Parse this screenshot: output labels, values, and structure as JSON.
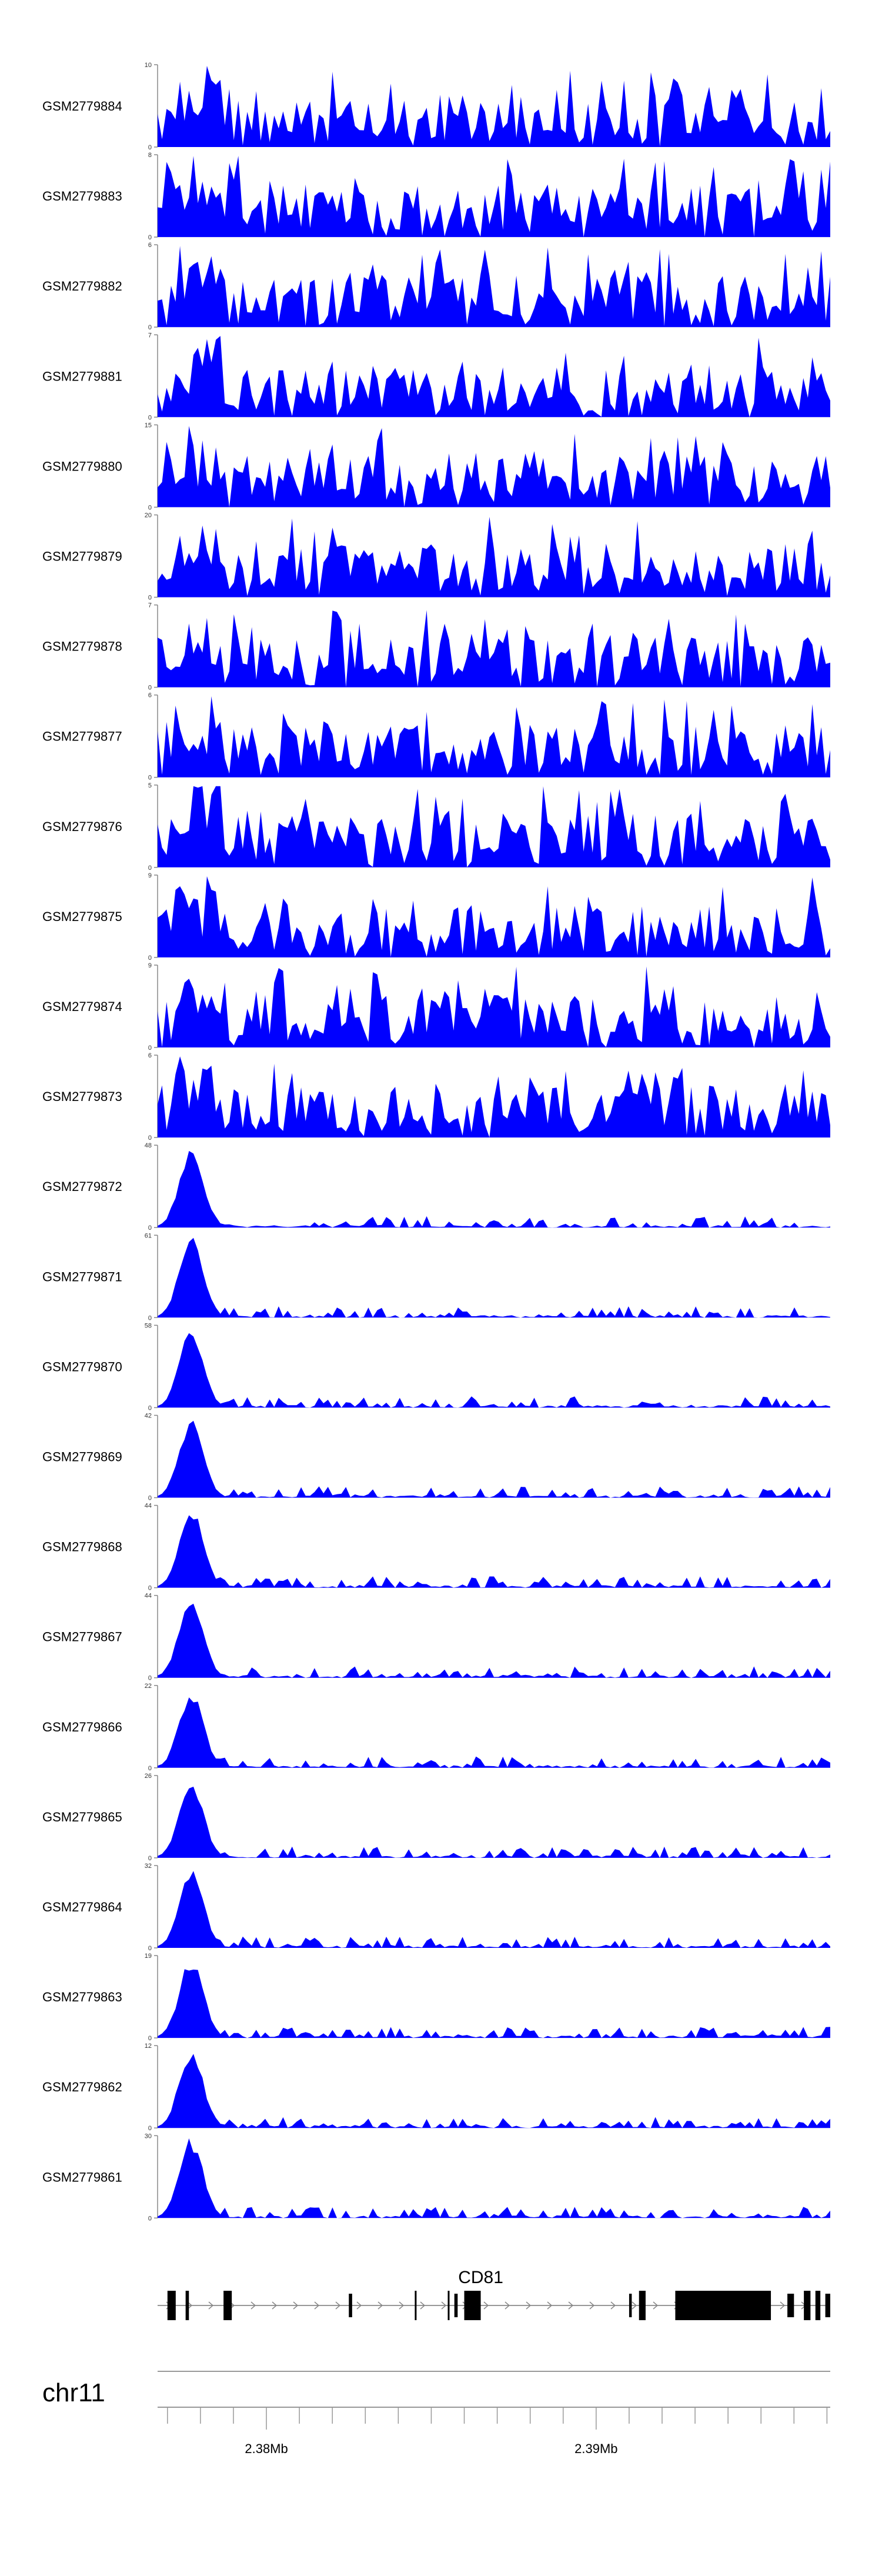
{
  "chart_data": {
    "type": "area",
    "fill_color": "#0000ff",
    "tracks": [
      {
        "name": "GSM2779884",
        "ymax": 10,
        "pattern": "noise",
        "seed": 884
      },
      {
        "name": "GSM2779883",
        "ymax": 8,
        "pattern": "noise",
        "seed": 883
      },
      {
        "name": "GSM2779882",
        "ymax": 6,
        "pattern": "noise",
        "seed": 882
      },
      {
        "name": "GSM2779881",
        "ymax": 7,
        "pattern": "noise",
        "seed": 881
      },
      {
        "name": "GSM2779880",
        "ymax": 15,
        "pattern": "noise",
        "seed": 880
      },
      {
        "name": "GSM2779879",
        "ymax": 20,
        "pattern": "noise",
        "seed": 879
      },
      {
        "name": "GSM2779878",
        "ymax": 7,
        "pattern": "noise",
        "seed": 878
      },
      {
        "name": "GSM2779877",
        "ymax": 6,
        "pattern": "noise",
        "seed": 877
      },
      {
        "name": "GSM2779876",
        "ymax": 5,
        "pattern": "noise",
        "seed": 876
      },
      {
        "name": "GSM2779875",
        "ymax": 9,
        "pattern": "noise",
        "seed": 875
      },
      {
        "name": "GSM2779874",
        "ymax": 9,
        "pattern": "noise",
        "seed": 874
      },
      {
        "name": "GSM2779873",
        "ymax": 6,
        "pattern": "noise",
        "seed": 873
      },
      {
        "name": "GSM2779872",
        "ymax": 48,
        "pattern": "peak",
        "seed": 872
      },
      {
        "name": "GSM2779871",
        "ymax": 61,
        "pattern": "peak",
        "seed": 871
      },
      {
        "name": "GSM2779870",
        "ymax": 58,
        "pattern": "peak",
        "seed": 870
      },
      {
        "name": "GSM2779869",
        "ymax": 42,
        "pattern": "peak",
        "seed": 869
      },
      {
        "name": "GSM2779868",
        "ymax": 44,
        "pattern": "peak",
        "seed": 868
      },
      {
        "name": "GSM2779867",
        "ymax": 44,
        "pattern": "peak",
        "seed": 867
      },
      {
        "name": "GSM2779866",
        "ymax": 22,
        "pattern": "peak",
        "seed": 866
      },
      {
        "name": "GSM2779865",
        "ymax": 26,
        "pattern": "peak",
        "seed": 865
      },
      {
        "name": "GSM2779864",
        "ymax": 32,
        "pattern": "peak",
        "seed": 864
      },
      {
        "name": "GSM2779863",
        "ymax": 19,
        "pattern": "peak",
        "seed": 863
      },
      {
        "name": "GSM2779862",
        "ymax": 12,
        "pattern": "peak",
        "seed": 862
      },
      {
        "name": "GSM2779861",
        "ymax": 30,
        "pattern": "peak",
        "seed": 861
      }
    ],
    "ymin_label": "0",
    "gene": {
      "name": "CD81",
      "region_start": 2374700,
      "region_end": 2395100,
      "intron_start": 2374700,
      "intron_end": 2395100,
      "exons": [
        {
          "start": 2375000,
          "end": 2375250,
          "size": "thick"
        },
        {
          "start": 2375550,
          "end": 2375650,
          "size": "thick"
        },
        {
          "start": 2376700,
          "end": 2376950,
          "size": "thick"
        },
        {
          "start": 2380500,
          "end": 2380600,
          "size": "medium"
        },
        {
          "start": 2382500,
          "end": 2382550,
          "size": "thin"
        },
        {
          "start": 2383500,
          "end": 2383550,
          "size": "thin"
        },
        {
          "start": 2383700,
          "end": 2383800,
          "size": "medium"
        },
        {
          "start": 2384000,
          "end": 2384500,
          "size": "thick"
        },
        {
          "start": 2389000,
          "end": 2389080,
          "size": "medium"
        },
        {
          "start": 2389300,
          "end": 2389500,
          "size": "thick"
        },
        {
          "start": 2390400,
          "end": 2393300,
          "size": "thick"
        },
        {
          "start": 2392900,
          "end": 2393200,
          "size": "thick"
        },
        {
          "start": 2393800,
          "end": 2394000,
          "size": "medium"
        },
        {
          "start": 2394300,
          "end": 2394500,
          "size": "thick"
        },
        {
          "start": 2394650,
          "end": 2394800,
          "size": "thick"
        },
        {
          "start": 2394950,
          "end": 2395100,
          "size": "medium"
        }
      ]
    },
    "chromosome": "chr11",
    "axis": {
      "ticks": [
        2375000,
        2376000,
        2377000,
        2378000,
        2379000,
        2380000,
        2381000,
        2382000,
        2383000,
        2384000,
        2385000,
        2386000,
        2387000,
        2388000,
        2389000,
        2390000,
        2391000,
        2392000,
        2393000,
        2394000,
        2395000
      ],
      "labeled_ticks": [
        2378000,
        2388000
      ],
      "labels": [
        "2.38Mb",
        "2.39Mb"
      ]
    }
  }
}
